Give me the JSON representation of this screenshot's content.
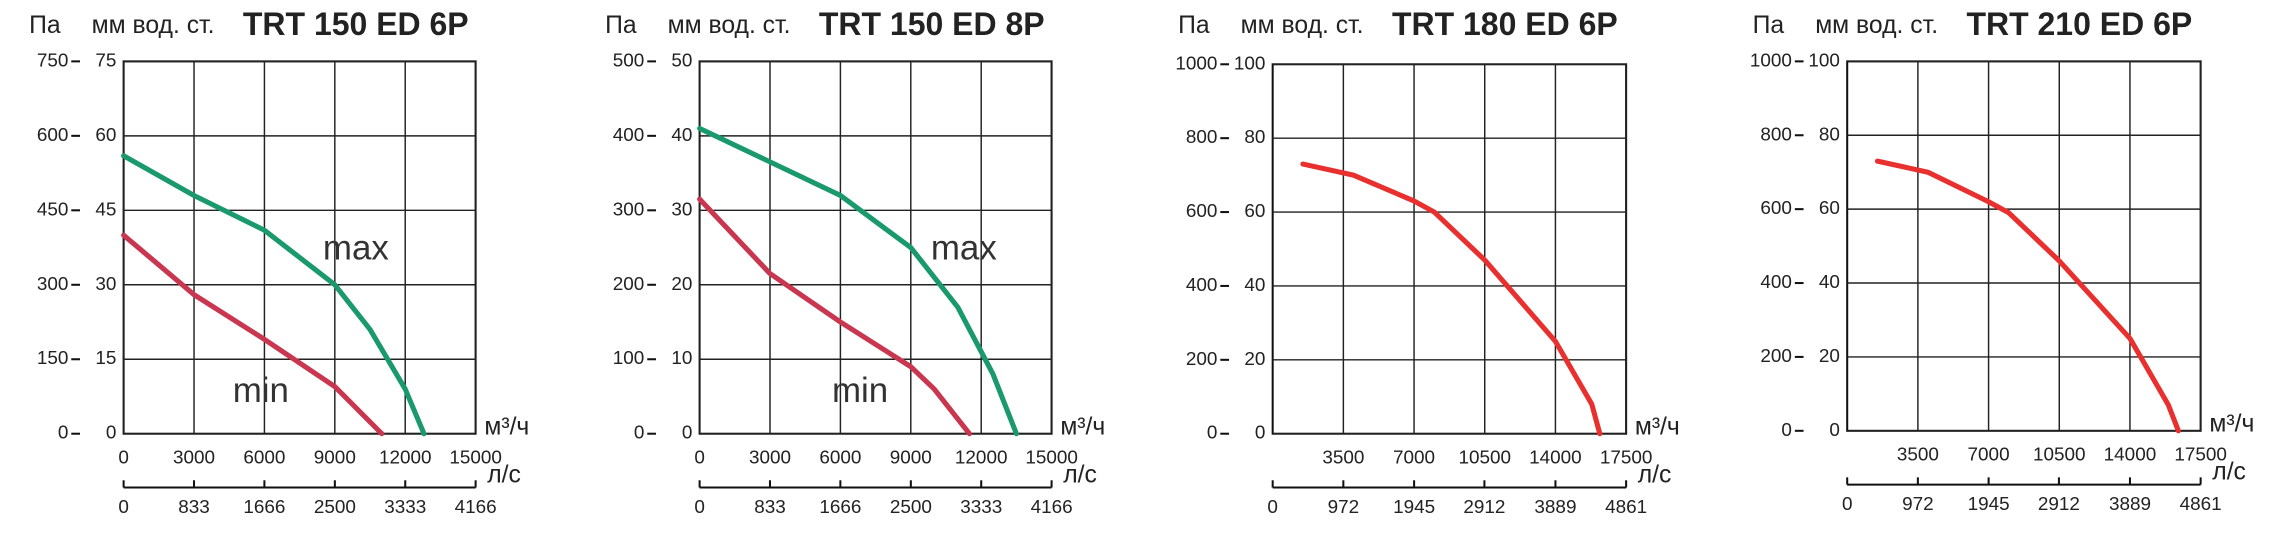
{
  "chart_data": [
    {
      "type": "line",
      "title": "TRT 150 ED 6P",
      "y_label": "Па",
      "y2_label": "мм вод. ст.",
      "x_label": "м³/ч",
      "x2_label": "л/с",
      "xlim": [
        0,
        15000
      ],
      "xticks": [
        0,
        3000,
        6000,
        9000,
        12000,
        15000
      ],
      "x2lim": [
        0,
        4166
      ],
      "x2ticks": [
        0,
        833,
        1666,
        2500,
        3333,
        4166
      ],
      "ylim": [
        0,
        750
      ],
      "yticks": [
        0,
        150,
        300,
        450,
        600,
        750
      ],
      "y2lim": [
        0,
        75
      ],
      "y2ticks": [
        0,
        15,
        30,
        45,
        60,
        75
      ],
      "grid": true,
      "series": [
        {
          "name": "max",
          "color": "#1a9a6c",
          "x": [
            0,
            3000,
            6000,
            9000,
            10500,
            12000,
            12800
          ],
          "values": [
            560,
            480,
            410,
            300,
            210,
            90,
            0
          ]
        },
        {
          "name": "min",
          "color": "#c8374f",
          "x": [
            0,
            3000,
            6000,
            9000,
            11000
          ],
          "values": [
            400,
            280,
            190,
            95,
            0
          ]
        }
      ]
    },
    {
      "type": "line",
      "title": "TRT 150 ED 8P",
      "y_label": "Па",
      "y2_label": "мм вод. ст.",
      "x_label": "м³/ч",
      "x2_label": "л/с",
      "xlim": [
        0,
        15000
      ],
      "xticks": [
        0,
        3000,
        6000,
        9000,
        12000,
        15000
      ],
      "x2lim": [
        0,
        4166
      ],
      "x2ticks": [
        0,
        833,
        1666,
        2500,
        3333,
        4166
      ],
      "ylim": [
        0,
        500
      ],
      "yticks": [
        0,
        100,
        200,
        300,
        400,
        500
      ],
      "y2lim": [
        0,
        50
      ],
      "y2ticks": [
        0,
        10,
        20,
        30,
        40,
        50
      ],
      "grid": true,
      "series": [
        {
          "name": "max",
          "color": "#1a9a6c",
          "x": [
            0,
            3000,
            6000,
            9000,
            11000,
            12500,
            13500
          ],
          "values": [
            410,
            365,
            320,
            250,
            170,
            80,
            0
          ]
        },
        {
          "name": "min",
          "color": "#c8374f",
          "x": [
            0,
            3000,
            6000,
            9000,
            10000,
            11500
          ],
          "values": [
            315,
            215,
            150,
            90,
            60,
            0
          ]
        }
      ]
    },
    {
      "type": "line",
      "title": "TRT 180 ED 6P",
      "y_label": "Па",
      "y2_label": "мм вод. ст.",
      "x_label": "м³/ч",
      "x2_label": "л/с",
      "xlim": [
        0,
        17500
      ],
      "xticks": [
        3500,
        7000,
        10500,
        14000,
        17500
      ],
      "x2lim": [
        0,
        4861
      ],
      "x2ticks": [
        0,
        972,
        1945,
        2912,
        3889,
        4861
      ],
      "ylim": [
        0,
        1000
      ],
      "yticks": [
        0,
        200,
        400,
        600,
        800,
        1000
      ],
      "y2lim": [
        0,
        100
      ],
      "y2ticks": [
        0,
        20,
        40,
        60,
        80,
        100
      ],
      "grid": true,
      "series": [
        {
          "color": "#e8302f",
          "x": [
            1500,
            4000,
            7000,
            8000,
            10500,
            14000,
            15800,
            16200
          ],
          "values": [
            730,
            700,
            630,
            600,
            470,
            250,
            80,
            0
          ]
        }
      ]
    },
    {
      "type": "line",
      "title": "TRT 210 ED 6P",
      "y_label": "Па",
      "y2_label": "мм вод. ст.",
      "x_label": "м³/ч",
      "x2_label": "л/с",
      "xlim": [
        0,
        17500
      ],
      "xticks": [
        3500,
        7000,
        10500,
        14000,
        17500
      ],
      "x2lim": [
        0,
        4861
      ],
      "x2ticks": [
        0,
        972,
        1945,
        2912,
        3889,
        4861
      ],
      "ylim": [
        0,
        1000
      ],
      "yticks": [
        0,
        200,
        400,
        600,
        800,
        1000
      ],
      "y2lim": [
        0,
        100
      ],
      "y2ticks": [
        0,
        20,
        40,
        60,
        80,
        100
      ],
      "grid": true,
      "series": [
        {
          "color": "#e8302f",
          "x": [
            1500,
            4000,
            7000,
            8000,
            10500,
            14000,
            15900,
            16400
          ],
          "values": [
            730,
            700,
            620,
            590,
            460,
            250,
            70,
            0
          ]
        }
      ]
    }
  ]
}
